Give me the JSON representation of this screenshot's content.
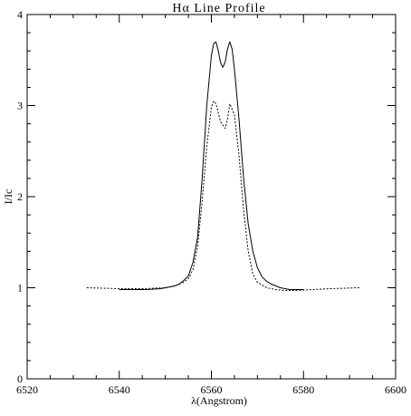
{
  "chart_data": {
    "type": "line",
    "title": "Hα Line Profile",
    "xlabel": "λ(Angstrom)",
    "ylabel": "I/Ic",
    "xlim": [
      6520,
      6600
    ],
    "ylim": [
      0,
      4
    ],
    "x_ticks": [
      6520,
      6540,
      6560,
      6580,
      6600
    ],
    "x_tick_labels": [
      "6520",
      "6540",
      "6560",
      "6580",
      "6600"
    ],
    "y_ticks": [
      0,
      1,
      2,
      3,
      4
    ],
    "y_tick_labels": [
      "0",
      "1",
      "2",
      "3",
      "4"
    ],
    "grid": false,
    "series": [
      {
        "style": "solid",
        "color": "#000000",
        "x": [
          6540.0,
          6543.0,
          6546.0,
          6549.0,
          6550.0,
          6551.0,
          6552.0,
          6553.0,
          6554.0,
          6555.0,
          6556.0,
          6557.0,
          6558.0,
          6559.0,
          6560.0,
          6560.5,
          6561.0,
          6561.5,
          6562.0,
          6562.5,
          6563.0,
          6563.5,
          6564.0,
          6564.5,
          6565.0,
          6566.0,
          6567.0,
          6568.0,
          6569.0,
          6570.0,
          6571.0,
          6572.0,
          6573.0,
          6574.0,
          6575.0,
          6576.0,
          6577.0,
          6578.0,
          6580.0
        ],
        "y": [
          0.98,
          0.98,
          0.98,
          0.99,
          1.0,
          1.01,
          1.02,
          1.04,
          1.08,
          1.13,
          1.28,
          1.55,
          2.2,
          3.0,
          3.55,
          3.68,
          3.7,
          3.6,
          3.47,
          3.42,
          3.48,
          3.62,
          3.7,
          3.62,
          3.4,
          2.85,
          2.2,
          1.7,
          1.4,
          1.22,
          1.12,
          1.07,
          1.04,
          1.02,
          1.0,
          0.99,
          0.98,
          0.98,
          0.98
        ]
      },
      {
        "style": "dotted",
        "color": "#000000",
        "x": [
          6533.0,
          6540.0,
          6545.0,
          6550.0,
          6552.0,
          6554.0,
          6555.0,
          6556.0,
          6557.0,
          6558.0,
          6559.0,
          6560.0,
          6560.5,
          6561.0,
          6562.0,
          6563.0,
          6563.5,
          6564.0,
          6565.0,
          6566.0,
          6567.0,
          6568.0,
          6569.0,
          6570.0,
          6572.0,
          6574.0,
          6576.0,
          6578.0,
          6582.0,
          6586.0,
          6592.0
        ],
        "y": [
          1.0,
          0.99,
          0.99,
          1.0,
          1.02,
          1.06,
          1.1,
          1.2,
          1.45,
          1.95,
          2.55,
          2.98,
          3.05,
          3.02,
          2.82,
          2.75,
          2.85,
          3.02,
          2.9,
          2.45,
          1.85,
          1.4,
          1.15,
          1.06,
          1.0,
          0.98,
          0.97,
          0.97,
          0.98,
          0.99,
          1.0
        ]
      }
    ]
  }
}
